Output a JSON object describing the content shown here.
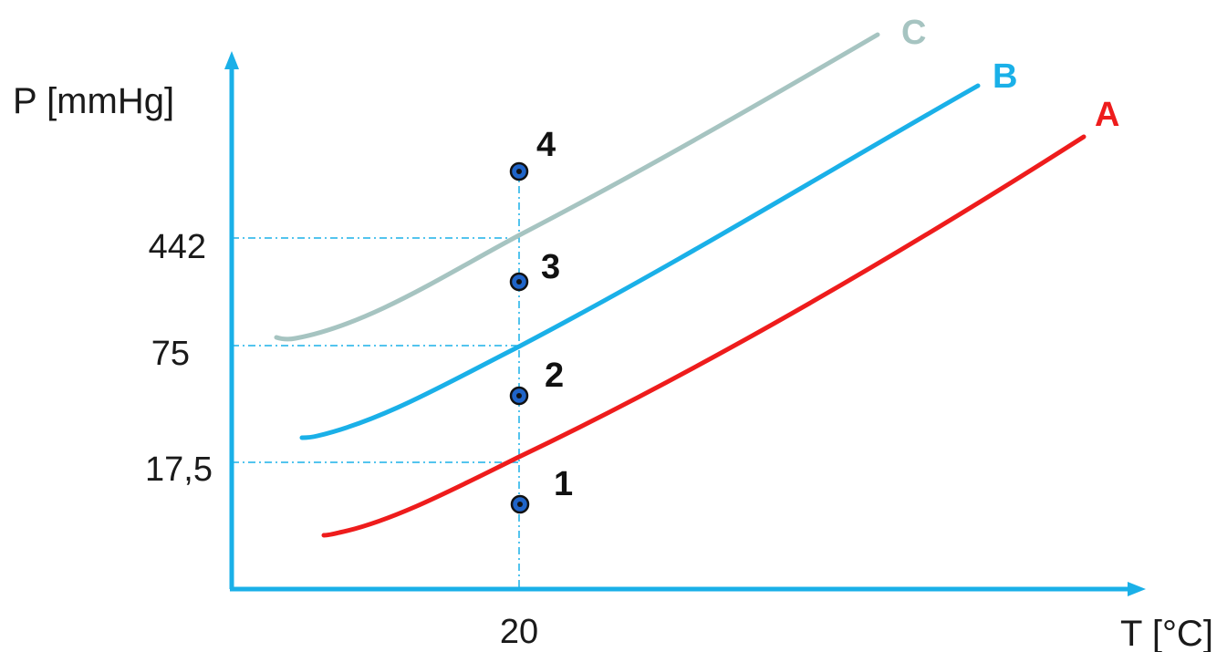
{
  "chart_data": {
    "type": "line",
    "xlabel": "T [°C]",
    "ylabel": "P [mmHg]",
    "x_ticks": [
      "20"
    ],
    "y_ticks": [
      "17,5",
      "75",
      "442"
    ],
    "reference_x": "20",
    "series": [
      {
        "name": "A",
        "color": "#ee1c1c"
      },
      {
        "name": "B",
        "color": "#1ab0e8"
      },
      {
        "name": "C",
        "color": "#a6c4c1"
      }
    ],
    "points": [
      {
        "label": "1"
      },
      {
        "label": "2"
      },
      {
        "label": "3"
      },
      {
        "label": "4"
      }
    ],
    "colors": {
      "axis": "#1ab0e8",
      "guide": "#1ab0e8",
      "point_fill": "#1f64c8",
      "point_stroke": "#111111"
    }
  }
}
